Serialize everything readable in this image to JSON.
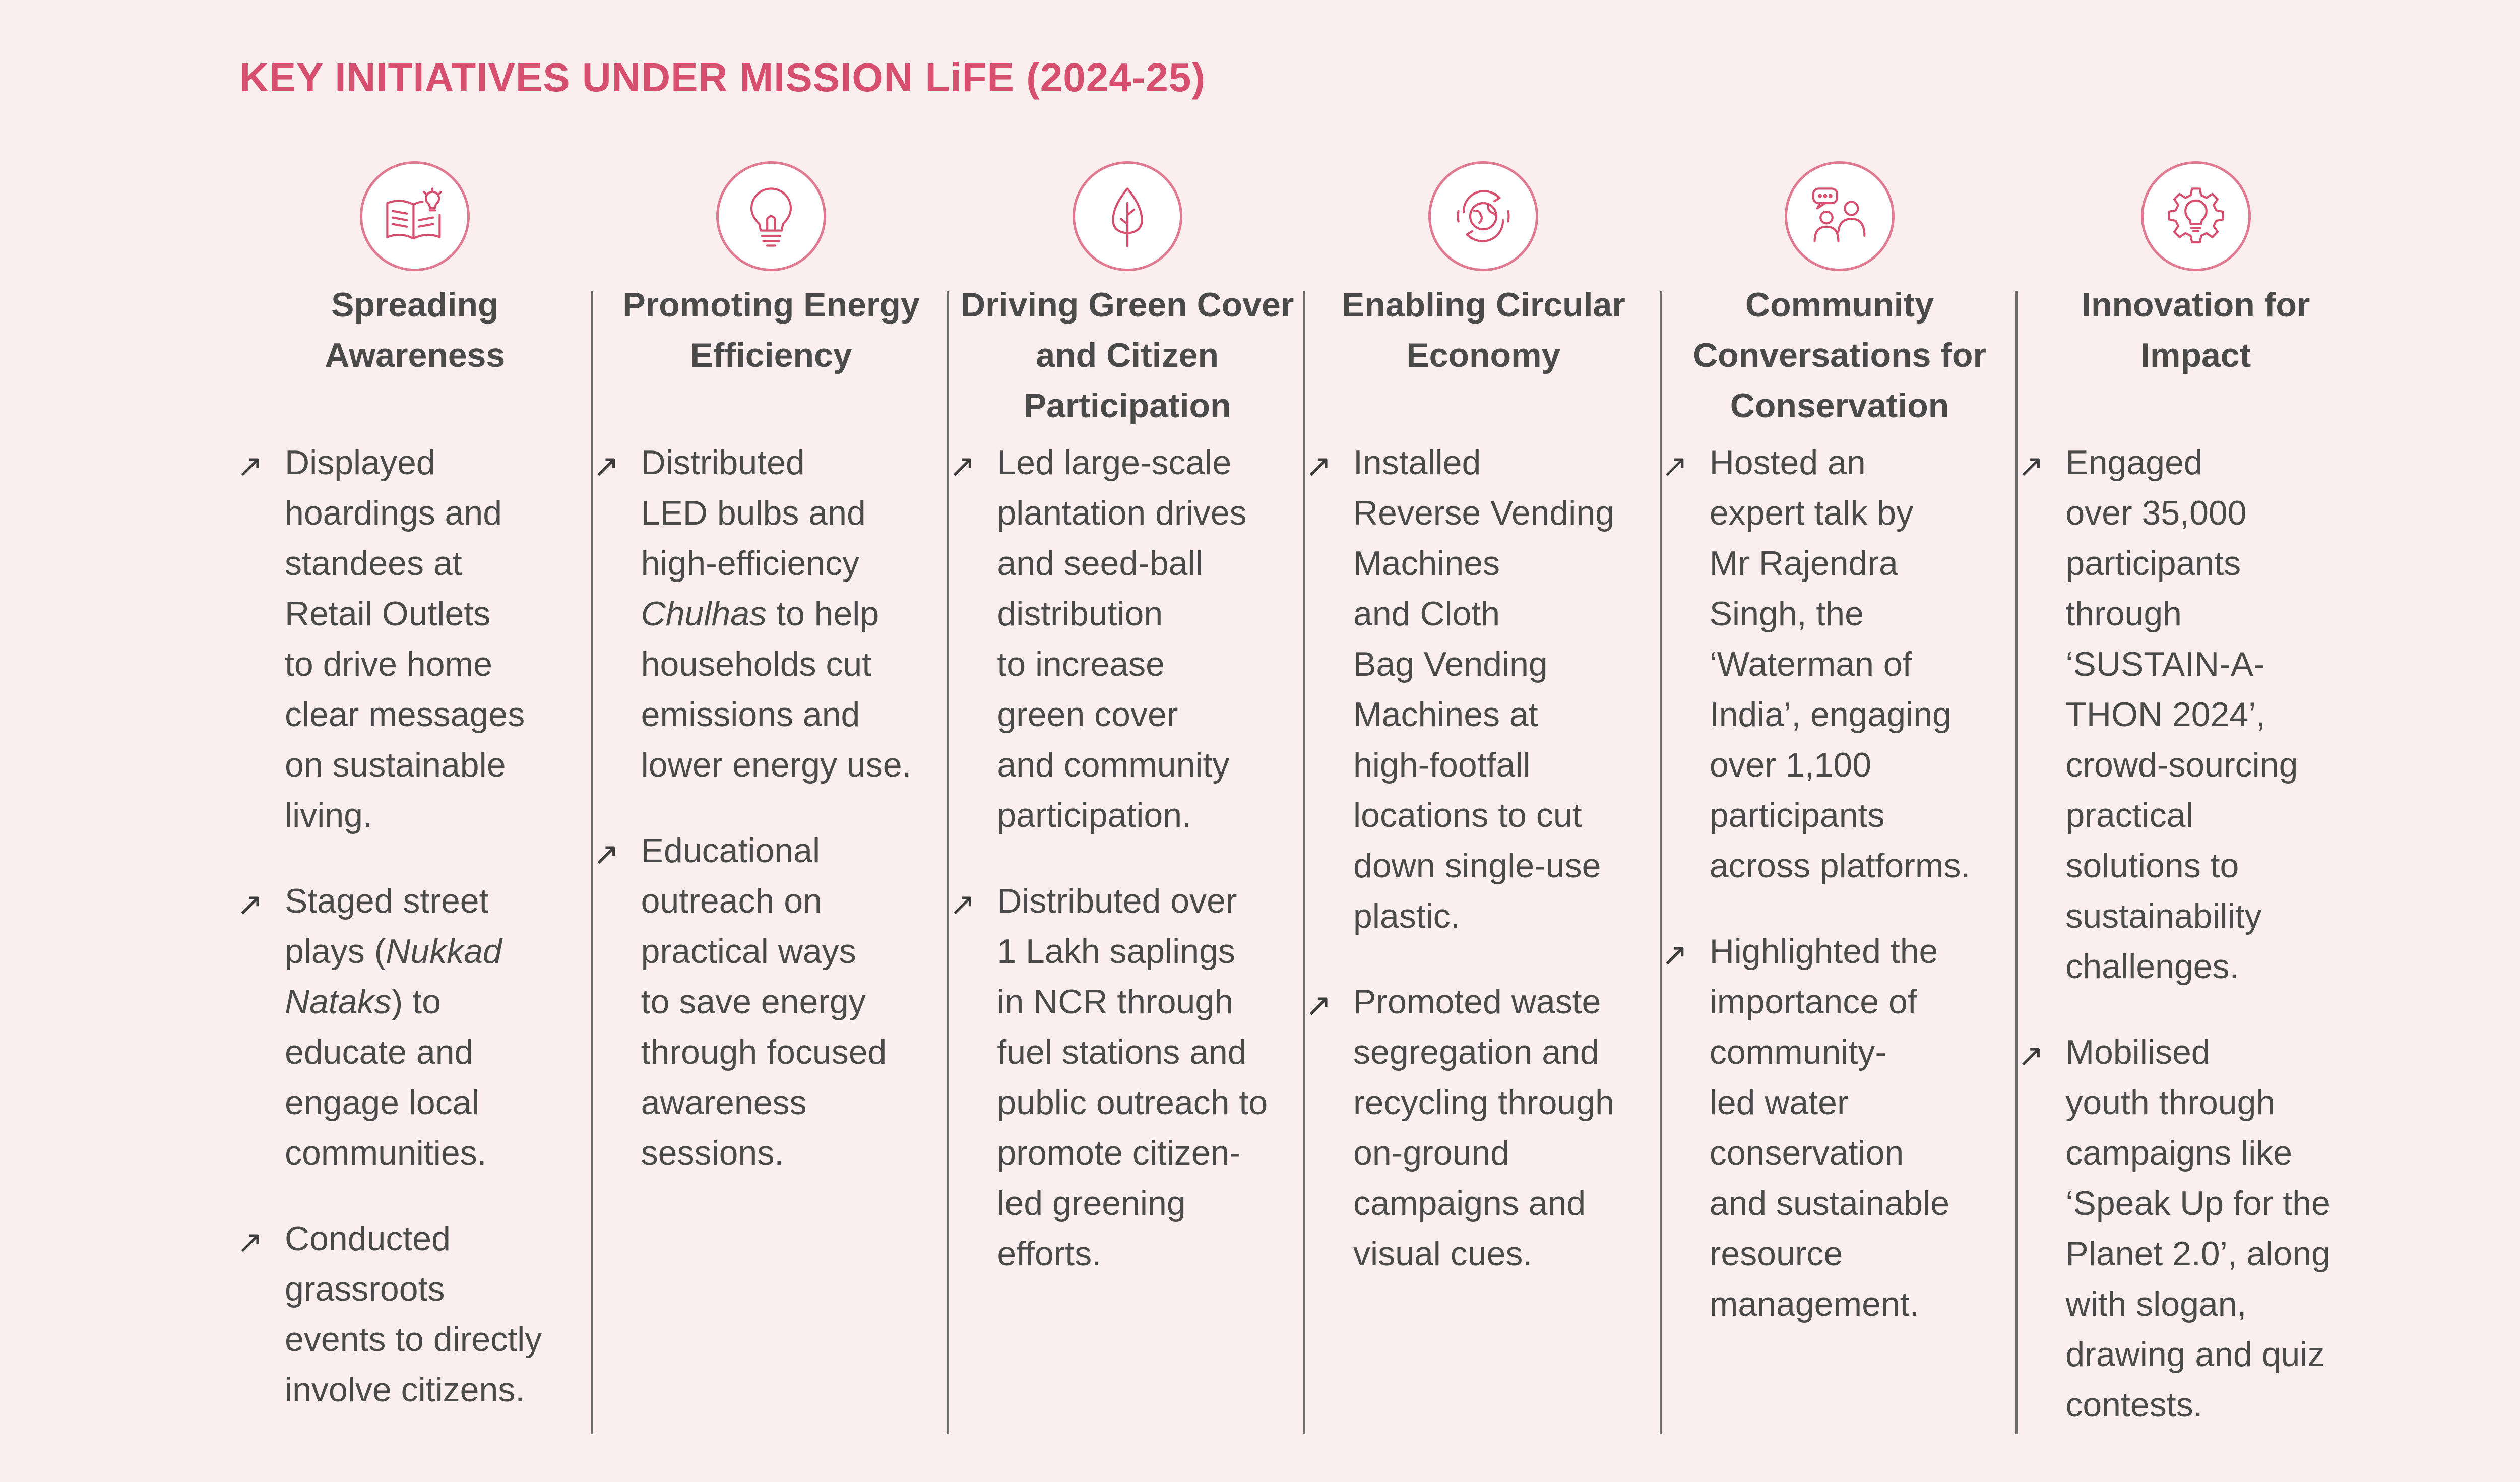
{
  "title": "KEY INITIATIVES UNDER MISSION LiFE (2024-25)",
  "colors": {
    "accent": "#d64f6e",
    "icon_ring": "#e07a91",
    "background": "#fbeeee",
    "text": "#4a4a4a"
  },
  "columns": [
    {
      "icon": "open-book-lightbulb-icon",
      "heading": "Spreading Awareness",
      "bullets": [
        {
          "lines": [
            "Displayed",
            "hoardings and",
            "standees at",
            "Retail Outlets",
            "to drive home",
            "clear messages",
            "on sustainable",
            "living."
          ]
        },
        {
          "lines": [
            "Staged street",
            "plays (Nukkad",
            "Nataks) to",
            "educate and",
            "engage local",
            "communities."
          ]
        },
        {
          "lines": [
            "Conducted",
            "grassroots",
            "events to directly",
            "involve citizens."
          ]
        }
      ]
    },
    {
      "icon": "lightbulb-icon",
      "heading": "Promoting Energy Efficiency",
      "bullets": [
        {
          "lines": [
            "Distributed",
            "LED bulbs and",
            "high-efficiency",
            "Chulhas to help",
            "households cut",
            "emissions and",
            "lower energy use."
          ]
        },
        {
          "lines": [
            "Educational",
            "outreach on",
            "practical ways",
            "to save energy",
            "through focused",
            "awareness",
            "sessions."
          ]
        }
      ]
    },
    {
      "icon": "tree-icon",
      "heading": "Driving Green Cover and Citizen Participation",
      "bullets": [
        {
          "lines": [
            "Led large-scale",
            "plantation drives",
            "and seed-ball",
            "distribution",
            "to increase",
            "green cover",
            "and community",
            "participation."
          ]
        },
        {
          "lines": [
            "Distributed over",
            "1 Lakh saplings",
            "in NCR through",
            "fuel stations and",
            "public outreach to",
            "promote citizen-",
            "led greening",
            "efforts."
          ]
        }
      ]
    },
    {
      "icon": "recycle-globe-icon",
      "heading": "Enabling Circular Economy",
      "bullets": [
        {
          "lines": [
            "Installed",
            "Reverse Vending",
            "Machines",
            "and Cloth",
            "Bag Vending",
            "Machines at",
            "high-footfall",
            "locations to cut",
            "down single-use",
            "plastic."
          ]
        },
        {
          "lines": [
            "Promoted waste",
            "segregation and",
            "recycling through",
            "on-ground",
            "campaigns and",
            "visual cues."
          ]
        }
      ]
    },
    {
      "icon": "people-conversation-icon",
      "heading": "Community Conversations for Conservation",
      "bullets": [
        {
          "lines": [
            "Hosted an",
            "expert talk by",
            "Mr Rajendra",
            "Singh, the",
            "‘Waterman of",
            "India’, engaging",
            "over 1,100",
            "participants",
            "across platforms."
          ]
        },
        {
          "lines": [
            "Highlighted the",
            "importance of",
            "community-",
            "led water",
            "conservation",
            "and sustainable",
            "resource",
            "management."
          ]
        }
      ]
    },
    {
      "icon": "gear-lightbulb-icon",
      "heading": "Innovation for Impact",
      "bullets": [
        {
          "lines": [
            "Engaged",
            "over 35,000",
            "participants",
            "through",
            "‘SUSTAIN-A-",
            "THON 2024’,",
            "crowd-sourcing",
            "practical",
            "solutions to",
            "sustainability",
            "challenges."
          ]
        },
        {
          "lines": [
            "Mobilised",
            "youth through",
            "campaigns like",
            "‘Speak Up for the",
            "Planet 2.0’, along",
            "with slogan,",
            "drawing and quiz",
            "contests."
          ]
        }
      ]
    }
  ],
  "bullet_marker": "↗"
}
